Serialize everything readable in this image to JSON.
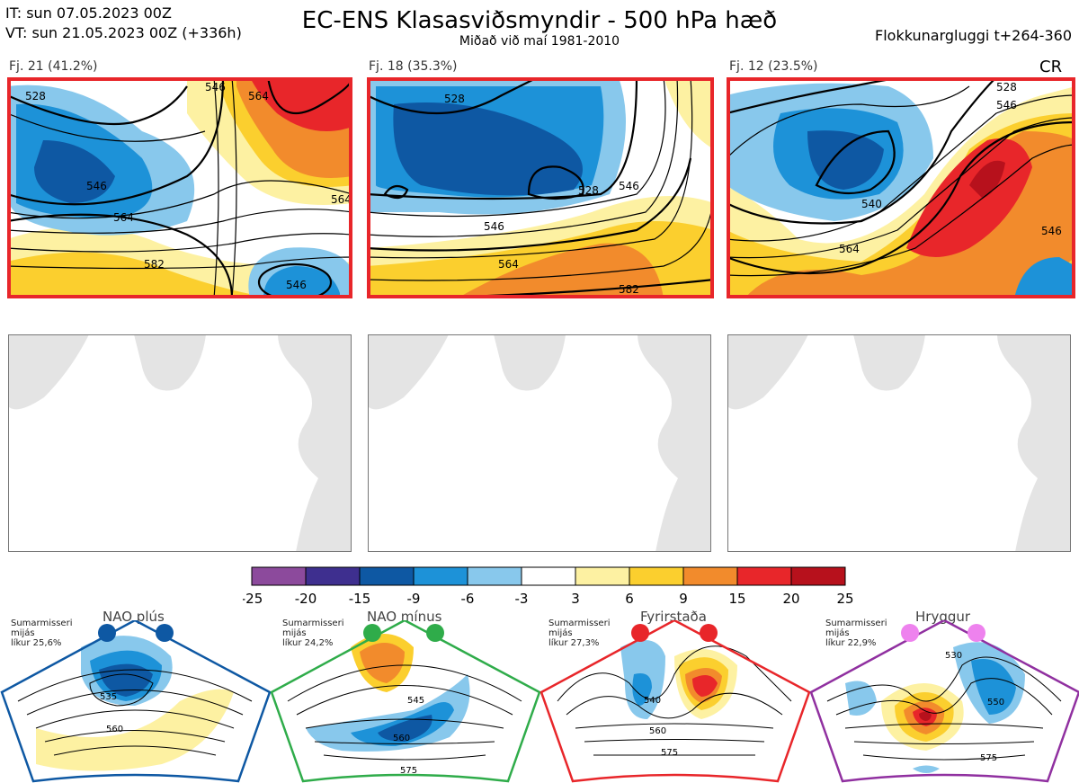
{
  "header": {
    "it_line": "IT: sun 07.05.2023 00Z",
    "vt_line": "VT: sun 21.05.2023 00Z  (+336h)",
    "title": "EC-ENS Klasasviðsmyndir - 500 hPa hæð",
    "subtitle": "Miðað við maí 1981-2010",
    "window_label": "Flokkunargluggi t+264-360"
  },
  "clusters": [
    {
      "label": "Fj. 21 (41.2%)",
      "regime_color": "#e8262a",
      "contours": [
        "528",
        "546",
        "564",
        "582",
        "546",
        "564",
        "546",
        "564"
      ]
    },
    {
      "label": "Fj. 18 (35.3%)",
      "regime_color": "#e8262a",
      "contours": [
        "528",
        "546",
        "564",
        "582",
        "528",
        "546"
      ]
    },
    {
      "label": "Fj. 12 (23.5%)",
      "regime_color": "#e8262a",
      "contours": [
        "528",
        "540",
        "564",
        "546",
        "546"
      ]
    }
  ],
  "cr_label": "CR",
  "colorbar": {
    "colors": [
      "#8c4a9c",
      "#3e2f8f",
      "#0e58a3",
      "#1d92d8",
      "#88c8ec",
      "#ffffff",
      "#fdf1a2",
      "#fbcf2e",
      "#f28b2c",
      "#e8262a",
      "#b7111c"
    ],
    "ticks": [
      "-25",
      "-20",
      "-15",
      "-9",
      "-6",
      "-3",
      "3",
      "6",
      "9",
      "15",
      "20",
      "25"
    ]
  },
  "regimes": [
    {
      "title": "NAO plús",
      "season": "Sumarmisseri",
      "mean_label": "mijás",
      "prob": "líkur 25,6%",
      "color": "#0e58a3",
      "contours": [
        "535",
        "560"
      ]
    },
    {
      "title": "NAO mínus",
      "season": "Sumarmisseri",
      "mean_label": "mijás",
      "prob": "líkur 24,2%",
      "color": "#2fac4a",
      "contours": [
        "545",
        "560",
        "575"
      ]
    },
    {
      "title": "Fyrirstaða",
      "season": "Sumarmisseri",
      "mean_label": "mijás",
      "prob": "líkur 27,3%",
      "color": "#e8262a",
      "contours": [
        "540",
        "560",
        "575"
      ]
    },
    {
      "title": "Hryggur",
      "season": "Sumarmisseri",
      "mean_label": "mijás",
      "prob": "líkur 22,9%",
      "color": "#9030a0",
      "contours": [
        "530",
        "550",
        "575"
      ]
    }
  ]
}
